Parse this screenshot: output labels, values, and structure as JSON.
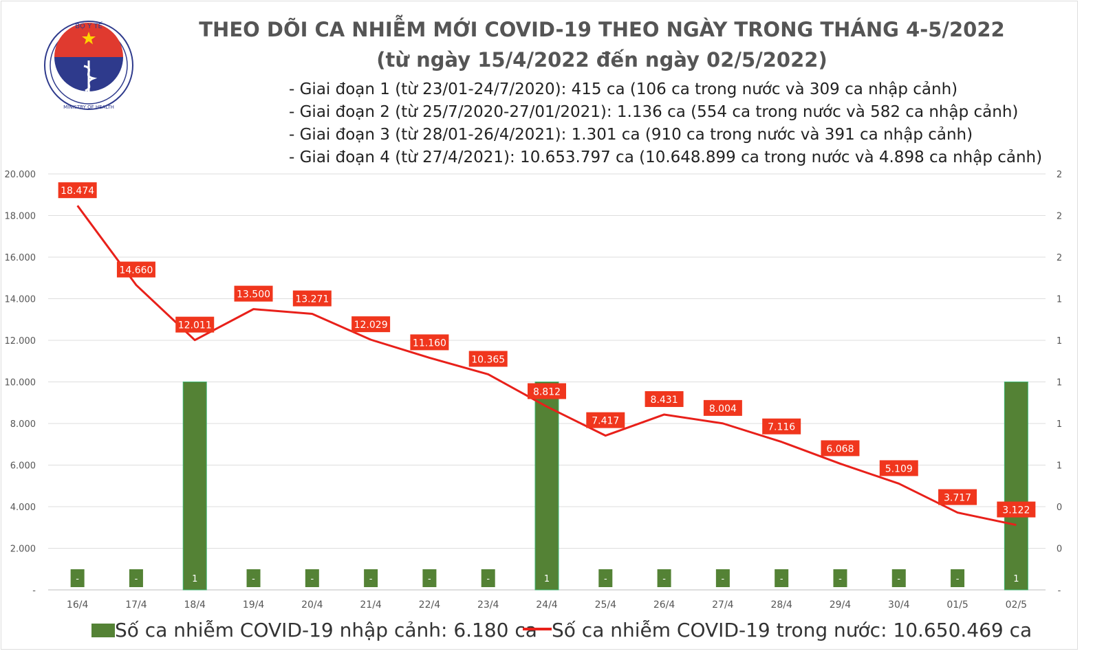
{
  "logo": {
    "text_top": "BỘ Y TẾ",
    "text_bottom": "MINISTRY OF HEALTH"
  },
  "title": "THEO DÕI CA NHIỄM MỚI COVID-19 THEO NGÀY TRONG THÁNG 4-5/2022",
  "subtitle": "(từ ngày 15/4/2022 đến ngày 02/5/2022)",
  "notes": [
    "- Giai đoạn 1 (từ 23/01-24/7/2020): 415 ca (106 ca trong nước và 309 ca nhập cảnh)",
    "- Giai đoạn 2 (từ 25/7/2020-27/01/2021): 1.136 ca (554 ca trong nước và 582 ca nhập cảnh)",
    "- Giai đoạn 3 (từ 28/01-26/4/2021): 1.301 ca (910 ca trong nước và 391 ca nhập cảnh)",
    "- Giai đoạn 4 (từ 27/4/2021): 10.653.797 ca (10.648.899 ca trong nước và 4.898 ca nhập cảnh)"
  ],
  "chart_data": {
    "type": "bar+line",
    "categories": [
      "16/4",
      "17/4",
      "18/4",
      "19/4",
      "20/4",
      "21/4",
      "22/4",
      "23/4",
      "24/4",
      "25/4",
      "26/4",
      "27/4",
      "28/4",
      "29/4",
      "30/4",
      "01/5",
      "02/5"
    ],
    "series": [
      {
        "name": "Số ca nhiễm COVID-19 nhập cảnh: 6.180 ca",
        "type": "bar",
        "axis": "right",
        "color": "#548235",
        "values": [
          0,
          0,
          1,
          0,
          0,
          0,
          0,
          0,
          1,
          0,
          0,
          0,
          0,
          0,
          0,
          0,
          1
        ],
        "labels": [
          "-",
          "-",
          "1",
          "-",
          "-",
          "-",
          "-",
          "-",
          "1",
          "-",
          "-",
          "-",
          "-",
          "-",
          "-",
          "-",
          "1"
        ]
      },
      {
        "name": "Số ca nhiễm COVID-19 trong nước: 10.650.469 ca",
        "type": "line",
        "axis": "left",
        "color": "#e8201a",
        "values": [
          18474,
          14660,
          12011,
          13500,
          13271,
          12029,
          11160,
          10365,
          8812,
          7417,
          8431,
          8004,
          7116,
          6068,
          5109,
          3717,
          3122
        ],
        "labels": [
          "18.474",
          "14.660",
          "12.011",
          "13.500",
          "13.271",
          "12.029",
          "11.160",
          "10.365",
          "8.812",
          "7.417",
          "8.431",
          "8.004",
          "7.116",
          "6.068",
          "5.109",
          "3.717",
          "3.122"
        ]
      }
    ],
    "left_axis": {
      "ylim": [
        0,
        20000
      ],
      "ticks": [
        "-",
        "2.000",
        "4.000",
        "6.000",
        "8.000",
        "10.000",
        "12.000",
        "14.000",
        "16.000",
        "18.000",
        "20.000"
      ]
    },
    "right_axis": {
      "ylim": [
        0,
        2
      ],
      "ticks": [
        "-",
        "0",
        "0",
        "1",
        "1",
        "1",
        "1",
        "1",
        "2",
        "2",
        "2"
      ]
    },
    "grid": true,
    "legend": "bottom"
  }
}
